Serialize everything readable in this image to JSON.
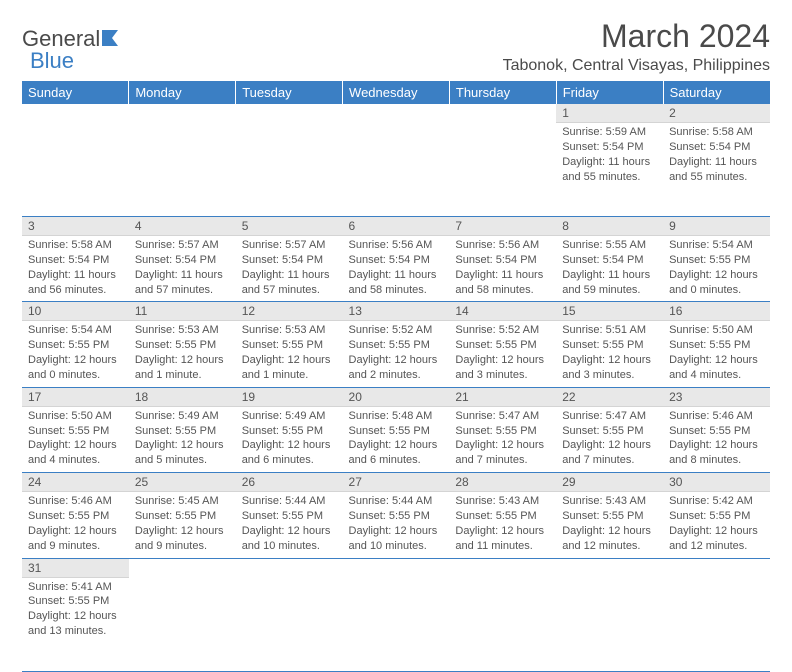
{
  "logo": {
    "text1": "General",
    "text2": "Blue"
  },
  "header": {
    "month_title": "March 2024",
    "location": "Tabonok, Central Visayas, Philippines"
  },
  "colors": {
    "header_bg": "#3b7fc4",
    "header_text": "#ffffff",
    "daynum_bg": "#e8e8e8",
    "text": "#555555",
    "row_border": "#3b7fc4",
    "logo_blue": "#3b7fc4"
  },
  "weekdays": [
    "Sunday",
    "Monday",
    "Tuesday",
    "Wednesday",
    "Thursday",
    "Friday",
    "Saturday"
  ],
  "weeks": [
    [
      null,
      null,
      null,
      null,
      null,
      {
        "n": "1",
        "sr": "Sunrise: 5:59 AM",
        "ss": "Sunset: 5:54 PM",
        "dl": "Daylight: 11 hours and 55 minutes."
      },
      {
        "n": "2",
        "sr": "Sunrise: 5:58 AM",
        "ss": "Sunset: 5:54 PM",
        "dl": "Daylight: 11 hours and 55 minutes."
      }
    ],
    [
      {
        "n": "3",
        "sr": "Sunrise: 5:58 AM",
        "ss": "Sunset: 5:54 PM",
        "dl": "Daylight: 11 hours and 56 minutes."
      },
      {
        "n": "4",
        "sr": "Sunrise: 5:57 AM",
        "ss": "Sunset: 5:54 PM",
        "dl": "Daylight: 11 hours and 57 minutes."
      },
      {
        "n": "5",
        "sr": "Sunrise: 5:57 AM",
        "ss": "Sunset: 5:54 PM",
        "dl": "Daylight: 11 hours and 57 minutes."
      },
      {
        "n": "6",
        "sr": "Sunrise: 5:56 AM",
        "ss": "Sunset: 5:54 PM",
        "dl": "Daylight: 11 hours and 58 minutes."
      },
      {
        "n": "7",
        "sr": "Sunrise: 5:56 AM",
        "ss": "Sunset: 5:54 PM",
        "dl": "Daylight: 11 hours and 58 minutes."
      },
      {
        "n": "8",
        "sr": "Sunrise: 5:55 AM",
        "ss": "Sunset: 5:54 PM",
        "dl": "Daylight: 11 hours and 59 minutes."
      },
      {
        "n": "9",
        "sr": "Sunrise: 5:54 AM",
        "ss": "Sunset: 5:55 PM",
        "dl": "Daylight: 12 hours and 0 minutes."
      }
    ],
    [
      {
        "n": "10",
        "sr": "Sunrise: 5:54 AM",
        "ss": "Sunset: 5:55 PM",
        "dl": "Daylight: 12 hours and 0 minutes."
      },
      {
        "n": "11",
        "sr": "Sunrise: 5:53 AM",
        "ss": "Sunset: 5:55 PM",
        "dl": "Daylight: 12 hours and 1 minute."
      },
      {
        "n": "12",
        "sr": "Sunrise: 5:53 AM",
        "ss": "Sunset: 5:55 PM",
        "dl": "Daylight: 12 hours and 1 minute."
      },
      {
        "n": "13",
        "sr": "Sunrise: 5:52 AM",
        "ss": "Sunset: 5:55 PM",
        "dl": "Daylight: 12 hours and 2 minutes."
      },
      {
        "n": "14",
        "sr": "Sunrise: 5:52 AM",
        "ss": "Sunset: 5:55 PM",
        "dl": "Daylight: 12 hours and 3 minutes."
      },
      {
        "n": "15",
        "sr": "Sunrise: 5:51 AM",
        "ss": "Sunset: 5:55 PM",
        "dl": "Daylight: 12 hours and 3 minutes."
      },
      {
        "n": "16",
        "sr": "Sunrise: 5:50 AM",
        "ss": "Sunset: 5:55 PM",
        "dl": "Daylight: 12 hours and 4 minutes."
      }
    ],
    [
      {
        "n": "17",
        "sr": "Sunrise: 5:50 AM",
        "ss": "Sunset: 5:55 PM",
        "dl": "Daylight: 12 hours and 4 minutes."
      },
      {
        "n": "18",
        "sr": "Sunrise: 5:49 AM",
        "ss": "Sunset: 5:55 PM",
        "dl": "Daylight: 12 hours and 5 minutes."
      },
      {
        "n": "19",
        "sr": "Sunrise: 5:49 AM",
        "ss": "Sunset: 5:55 PM",
        "dl": "Daylight: 12 hours and 6 minutes."
      },
      {
        "n": "20",
        "sr": "Sunrise: 5:48 AM",
        "ss": "Sunset: 5:55 PM",
        "dl": "Daylight: 12 hours and 6 minutes."
      },
      {
        "n": "21",
        "sr": "Sunrise: 5:47 AM",
        "ss": "Sunset: 5:55 PM",
        "dl": "Daylight: 12 hours and 7 minutes."
      },
      {
        "n": "22",
        "sr": "Sunrise: 5:47 AM",
        "ss": "Sunset: 5:55 PM",
        "dl": "Daylight: 12 hours and 7 minutes."
      },
      {
        "n": "23",
        "sr": "Sunrise: 5:46 AM",
        "ss": "Sunset: 5:55 PM",
        "dl": "Daylight: 12 hours and 8 minutes."
      }
    ],
    [
      {
        "n": "24",
        "sr": "Sunrise: 5:46 AM",
        "ss": "Sunset: 5:55 PM",
        "dl": "Daylight: 12 hours and 9 minutes."
      },
      {
        "n": "25",
        "sr": "Sunrise: 5:45 AM",
        "ss": "Sunset: 5:55 PM",
        "dl": "Daylight: 12 hours and 9 minutes."
      },
      {
        "n": "26",
        "sr": "Sunrise: 5:44 AM",
        "ss": "Sunset: 5:55 PM",
        "dl": "Daylight: 12 hours and 10 minutes."
      },
      {
        "n": "27",
        "sr": "Sunrise: 5:44 AM",
        "ss": "Sunset: 5:55 PM",
        "dl": "Daylight: 12 hours and 10 minutes."
      },
      {
        "n": "28",
        "sr": "Sunrise: 5:43 AM",
        "ss": "Sunset: 5:55 PM",
        "dl": "Daylight: 12 hours and 11 minutes."
      },
      {
        "n": "29",
        "sr": "Sunrise: 5:43 AM",
        "ss": "Sunset: 5:55 PM",
        "dl": "Daylight: 12 hours and 12 minutes."
      },
      {
        "n": "30",
        "sr": "Sunrise: 5:42 AM",
        "ss": "Sunset: 5:55 PM",
        "dl": "Daylight: 12 hours and 12 minutes."
      }
    ],
    [
      {
        "n": "31",
        "sr": "Sunrise: 5:41 AM",
        "ss": "Sunset: 5:55 PM",
        "dl": "Daylight: 12 hours and 13 minutes."
      },
      null,
      null,
      null,
      null,
      null,
      null
    ]
  ]
}
